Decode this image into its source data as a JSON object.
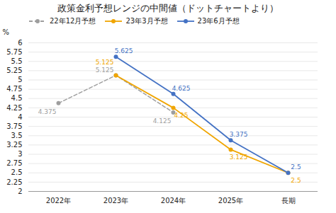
{
  "chart_data": {
    "type": "line",
    "title": "政策金利予想レンジの中間値（ドットチャートより）",
    "y_label": "%",
    "categories": [
      "2022年",
      "2023年",
      "2024年",
      "2025年",
      "長期"
    ],
    "series": [
      {
        "name": "22年12月予想",
        "color": "#9e9e9e",
        "marker": "circle",
        "line_style": "dashed",
        "values": [
          4.375,
          5.125,
          4.125,
          null,
          null
        ]
      },
      {
        "name": "23年3月予想",
        "color": "#f0a500",
        "marker": "circle",
        "line_style": "solid",
        "values": [
          null,
          5.125,
          4.25,
          3.125,
          2.5
        ]
      },
      {
        "name": "23年6月予想",
        "color": "#4472c4",
        "marker": "circle",
        "line_style": "solid",
        "values": [
          null,
          5.625,
          4.625,
          3.375,
          2.5
        ]
      }
    ],
    "ylim": [
      2,
      6
    ],
    "yticks": [
      2,
      2.25,
      2.5,
      2.75,
      3,
      3.25,
      3.5,
      3.75,
      4,
      4.25,
      4.5,
      4.75,
      5,
      5.25,
      5.5,
      5.75,
      6
    ],
    "grid": true,
    "legend": "top",
    "data_labels": true
  }
}
